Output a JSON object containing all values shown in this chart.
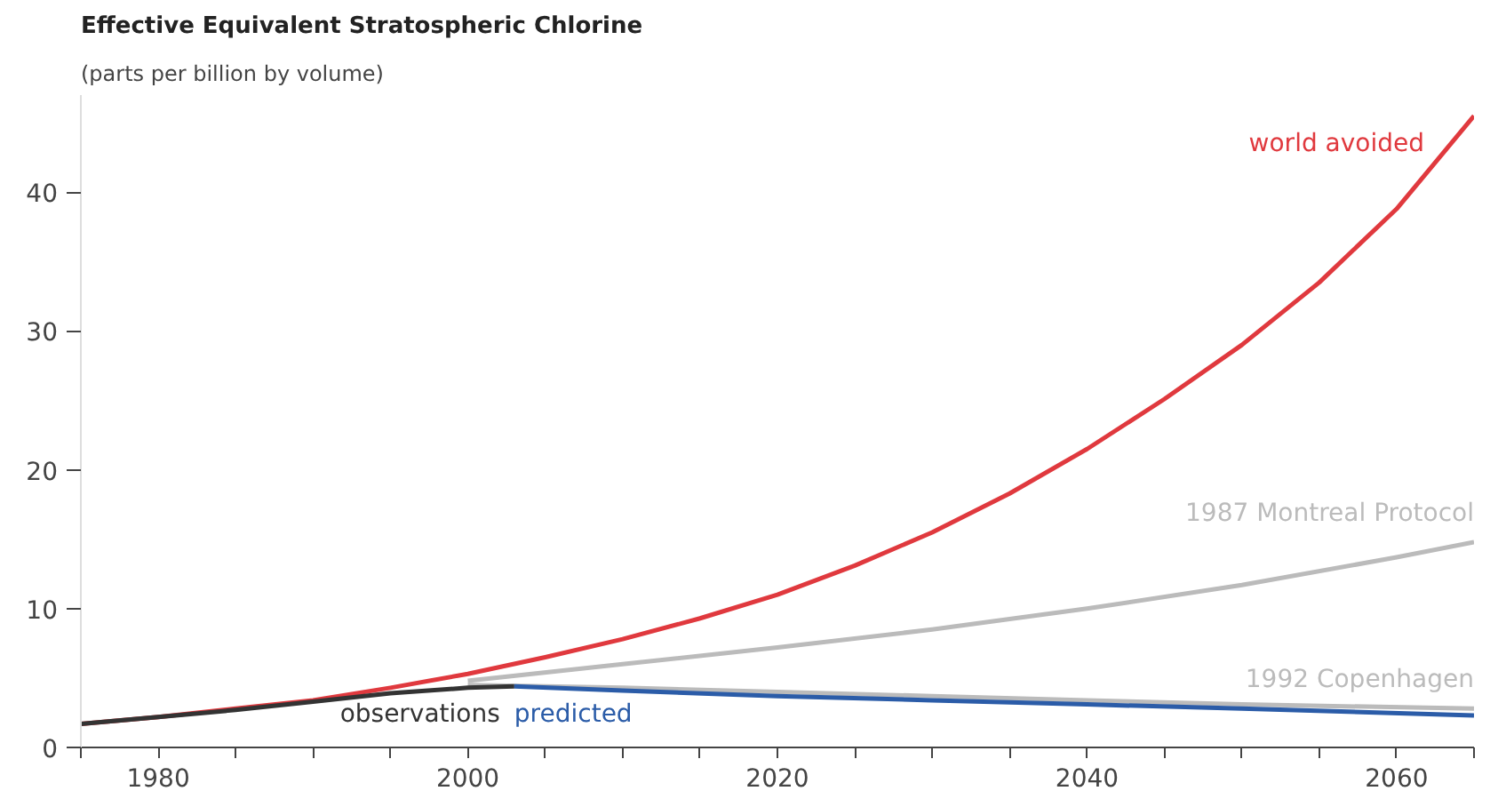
{
  "chart_data": {
    "type": "line",
    "title": "Effective Equivalent Stratospheric Chlorine",
    "subtitle": "(parts per billion by volume)",
    "xlim": [
      1975,
      2065
    ],
    "ylim": [
      0,
      47
    ],
    "xticks": [
      {
        "value": 1975,
        "label": null
      },
      1980,
      {
        "value": 1985,
        "label": null
      },
      {
        "value": 1990,
        "label": null
      },
      {
        "value": 1995,
        "label": null
      },
      2000,
      {
        "value": 2005,
        "label": null
      },
      {
        "value": 2010,
        "label": null
      },
      {
        "value": 2015,
        "label": null
      },
      2020,
      {
        "value": 2025,
        "label": null
      },
      {
        "value": 2030,
        "label": null
      },
      {
        "value": 2035,
        "label": null
      },
      2040,
      {
        "value": 2045,
        "label": null
      },
      {
        "value": 2050,
        "label": null
      },
      {
        "value": 2055,
        "label": null
      },
      2060,
      {
        "value": 2065,
        "label": null
      }
    ],
    "yticks": [
      0,
      10,
      20,
      30,
      40
    ],
    "grid": false,
    "legend": false,
    "line_style": "solid",
    "marker": "none",
    "series": [
      {
        "name": "world avoided",
        "color": "#e0393e",
        "x": [
          1975,
          1980,
          1985,
          1990,
          1995,
          2000,
          2005,
          2010,
          2015,
          2020,
          2025,
          2030,
          2035,
          2040,
          2045,
          2050,
          2055,
          2060,
          2065
        ],
        "values": [
          1.7,
          2.2,
          2.8,
          3.4,
          4.3,
          5.3,
          6.5,
          7.8,
          9.3,
          11.0,
          13.1,
          15.5,
          18.3,
          21.5,
          25.1,
          29.0,
          33.5,
          38.8,
          45.5
        ]
      },
      {
        "name": "1987 Montreal Protocol",
        "color": "#bbbbbb",
        "x": [
          2000,
          2010,
          2020,
          2030,
          2040,
          2050,
          2060,
          2065
        ],
        "values": [
          4.8,
          6.0,
          7.2,
          8.5,
          10.0,
          11.7,
          13.7,
          14.8
        ]
      },
      {
        "name": "1992 Copenhagen",
        "color": "#bbbbbb",
        "x": [
          2000,
          2010,
          2020,
          2030,
          2040,
          2050,
          2065
        ],
        "values": [
          4.5,
          4.3,
          4.0,
          3.7,
          3.4,
          3.1,
          2.8
        ]
      },
      {
        "name": "observations",
        "color": "#333333",
        "x": [
          1975,
          1980,
          1985,
          1990,
          1995,
          2000,
          2003
        ],
        "values": [
          1.7,
          2.2,
          2.7,
          3.3,
          3.9,
          4.3,
          4.4
        ]
      },
      {
        "name": "predicted",
        "color": "#2b5ca8",
        "x": [
          2003,
          2010,
          2020,
          2030,
          2040,
          2050,
          2065
        ],
        "values": [
          4.4,
          4.1,
          3.7,
          3.4,
          3.1,
          2.8,
          2.3
        ]
      }
    ]
  }
}
